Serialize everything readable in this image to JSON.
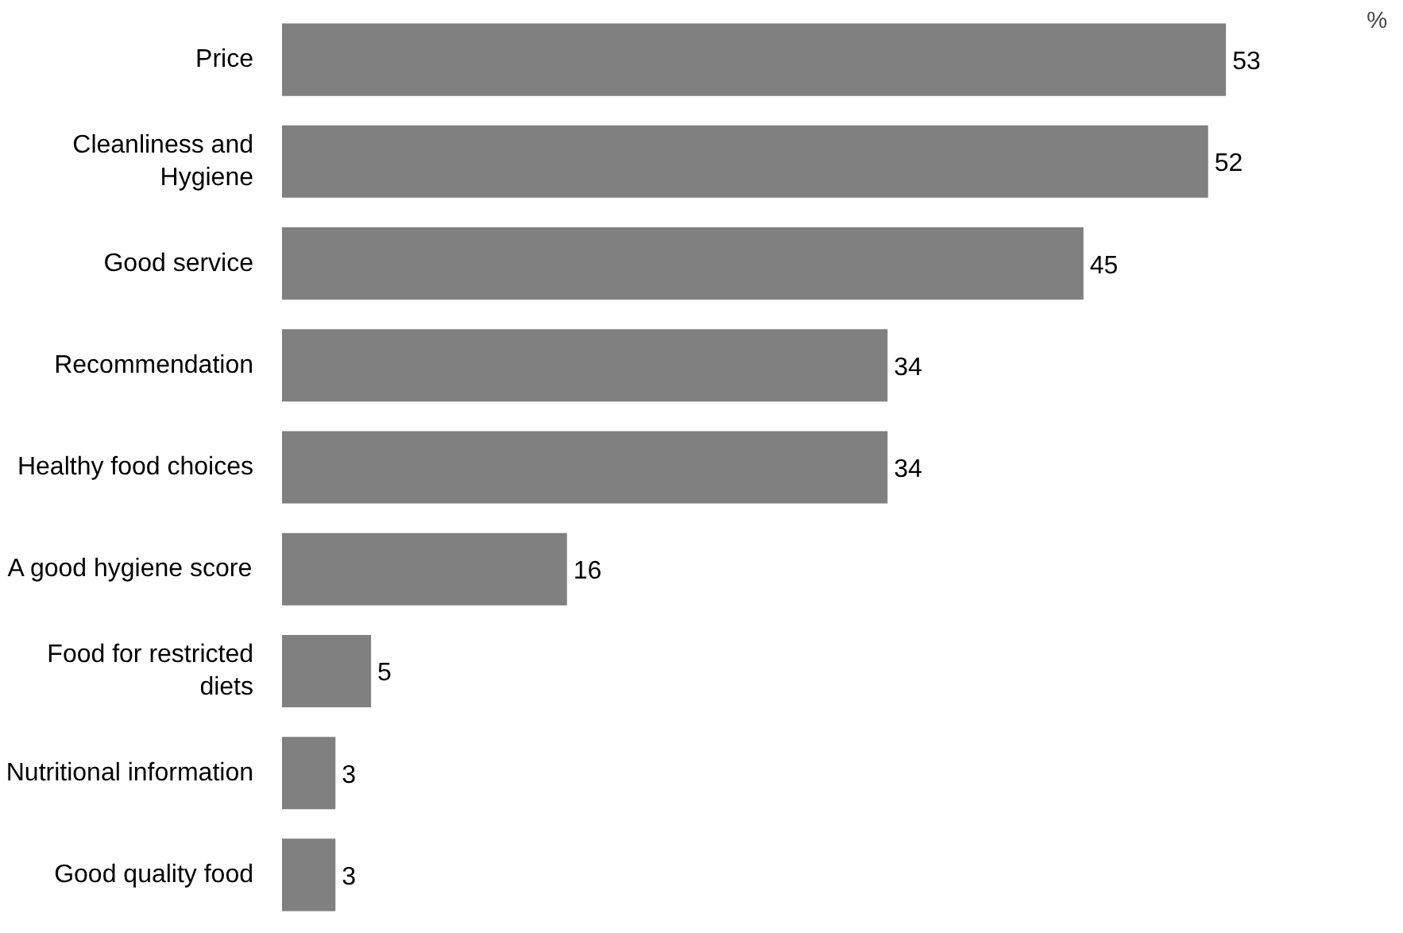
{
  "chart_data": {
    "type": "bar",
    "orientation": "horizontal",
    "categories": [
      "Price",
      "Cleanliness and\nHygiene",
      "Good service",
      "Recommendation",
      "Healthy food choices",
      "A good hygiene score",
      "Food for restricted\ndiets",
      "Nutritional information",
      "Good quality food"
    ],
    "values": [
      53,
      52,
      45,
      34,
      34,
      16,
      5,
      3,
      3
    ],
    "color": "#808080",
    "data_labels": true,
    "grid": false,
    "annotations": [
      "%"
    ]
  }
}
